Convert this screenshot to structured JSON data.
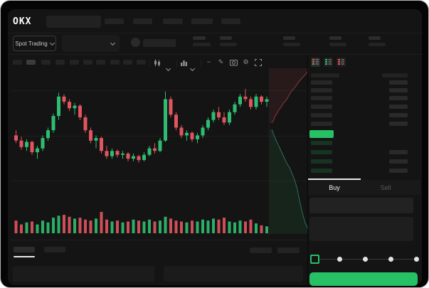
{
  "app": {
    "brand": "OKX"
  },
  "market_bar": {
    "market_type_label": "Spot Trading"
  },
  "toolbar": {
    "glyphs": {
      "tilde_icon": "~",
      "pencil_icon": "✎",
      "gear_icon": "⚙"
    }
  },
  "trade_panel": {
    "buy_tab_label": "Buy",
    "sell_tab_label": "Sell",
    "buy_button_label": ""
  },
  "orderbook": {
    "ask_rows": 6,
    "bid_rows": 4,
    "bid_rows_with_amount": 3,
    "last_price_color": "#26c065"
  },
  "colors": {
    "accent_green": "#26c065",
    "up": "#2ebd70",
    "down": "#e0555e",
    "panel_bg": "#141414",
    "window_bg": "#050505",
    "text_dim": "#c9c9c9"
  },
  "chart_data": {
    "type": "candlestick",
    "title": "",
    "xlabel": "",
    "ylabel": "",
    "units": "relative 0-100 scale (no axis labels visible in screenshot)",
    "ylim": [
      0,
      100
    ],
    "grid": "faint horizontal lines",
    "candles": [
      [
        58,
        62,
        52,
        54
      ],
      [
        54,
        57,
        47,
        49
      ],
      [
        49,
        55,
        46,
        53
      ],
      [
        53,
        54,
        43,
        45
      ],
      [
        45,
        50,
        40,
        48
      ],
      [
        48,
        58,
        46,
        56
      ],
      [
        56,
        64,
        54,
        62
      ],
      [
        62,
        75,
        60,
        73
      ],
      [
        73,
        91,
        70,
        88
      ],
      [
        88,
        90,
        82,
        84
      ],
      [
        84,
        86,
        77,
        79
      ],
      [
        79,
        83,
        74,
        81
      ],
      [
        81,
        82,
        70,
        72
      ],
      [
        72,
        74,
        60,
        62
      ],
      [
        62,
        64,
        52,
        54
      ],
      [
        54,
        58,
        48,
        56
      ],
      [
        56,
        57,
        44,
        46
      ],
      [
        46,
        50,
        40,
        42
      ],
      [
        42,
        48,
        40,
        46
      ],
      [
        46,
        47,
        41,
        43
      ],
      [
        43,
        46,
        40,
        44
      ],
      [
        44,
        45,
        38,
        40
      ],
      [
        40,
        44,
        38,
        42
      ],
      [
        42,
        43,
        37,
        39
      ],
      [
        39,
        45,
        38,
        43
      ],
      [
        43,
        50,
        42,
        48
      ],
      [
        48,
        52,
        44,
        46
      ],
      [
        46,
        56,
        45,
        54
      ],
      [
        54,
        92,
        53,
        86
      ],
      [
        86,
        88,
        72,
        74
      ],
      [
        74,
        76,
        62,
        64
      ],
      [
        64,
        66,
        56,
        58
      ],
      [
        58,
        62,
        54,
        60
      ],
      [
        60,
        61,
        53,
        55
      ],
      [
        55,
        60,
        52,
        58
      ],
      [
        58,
        66,
        56,
        64
      ],
      [
        64,
        72,
        62,
        70
      ],
      [
        70,
        78,
        68,
        76
      ],
      [
        76,
        80,
        70,
        72
      ],
      [
        72,
        76,
        66,
        68
      ],
      [
        68,
        78,
        66,
        76
      ],
      [
        76,
        84,
        74,
        82
      ],
      [
        82,
        90,
        80,
        88
      ],
      [
        88,
        94,
        84,
        86
      ],
      [
        86,
        88,
        78,
        80
      ],
      [
        80,
        90,
        78,
        88
      ],
      [
        88,
        89,
        82,
        84
      ],
      [
        84,
        88,
        80,
        86
      ]
    ],
    "volumes": [
      0.55,
      0.35,
      0.45,
      0.5,
      0.35,
      0.55,
      0.45,
      0.7,
      0.8,
      0.85,
      0.75,
      0.65,
      0.7,
      0.6,
      0.55,
      0.65,
      1.0,
      0.6,
      0.5,
      0.55,
      0.45,
      0.5,
      0.6,
      0.55,
      0.5,
      0.6,
      0.5,
      0.55,
      0.75,
      0.65,
      0.55,
      0.5,
      0.45,
      0.55,
      0.5,
      0.6,
      0.55,
      0.65,
      0.6,
      0.7,
      0.5,
      0.45,
      0.55,
      0.5,
      0.6,
      0.4,
      0.3,
      0.25
    ],
    "depth": {
      "asks_line": [
        [
          0.05,
          0.33
        ],
        [
          0.1,
          0.315
        ],
        [
          0.14,
          0.29
        ],
        [
          0.2,
          0.27
        ],
        [
          0.24,
          0.25
        ],
        [
          0.3,
          0.235
        ],
        [
          0.36,
          0.21
        ],
        [
          0.44,
          0.19
        ],
        [
          0.5,
          0.165
        ],
        [
          0.58,
          0.135
        ],
        [
          0.66,
          0.115
        ],
        [
          0.75,
          0.085
        ],
        [
          0.84,
          0.06
        ],
        [
          0.92,
          0.04
        ],
        [
          1.0,
          0.02
        ]
      ],
      "bids_line": [
        [
          0.06,
          0.37
        ],
        [
          0.12,
          0.41
        ],
        [
          0.2,
          0.45
        ],
        [
          0.3,
          0.5
        ],
        [
          0.38,
          0.54
        ],
        [
          0.45,
          0.575
        ],
        [
          0.52,
          0.6
        ],
        [
          0.6,
          0.645
        ],
        [
          0.66,
          0.68
        ],
        [
          0.72,
          0.73
        ],
        [
          0.78,
          0.8
        ],
        [
          0.85,
          0.87
        ],
        [
          0.92,
          0.93
        ],
        [
          1.0,
          0.97
        ]
      ]
    },
    "colors": {
      "up": "#2ebd70",
      "down": "#e0555e"
    }
  }
}
